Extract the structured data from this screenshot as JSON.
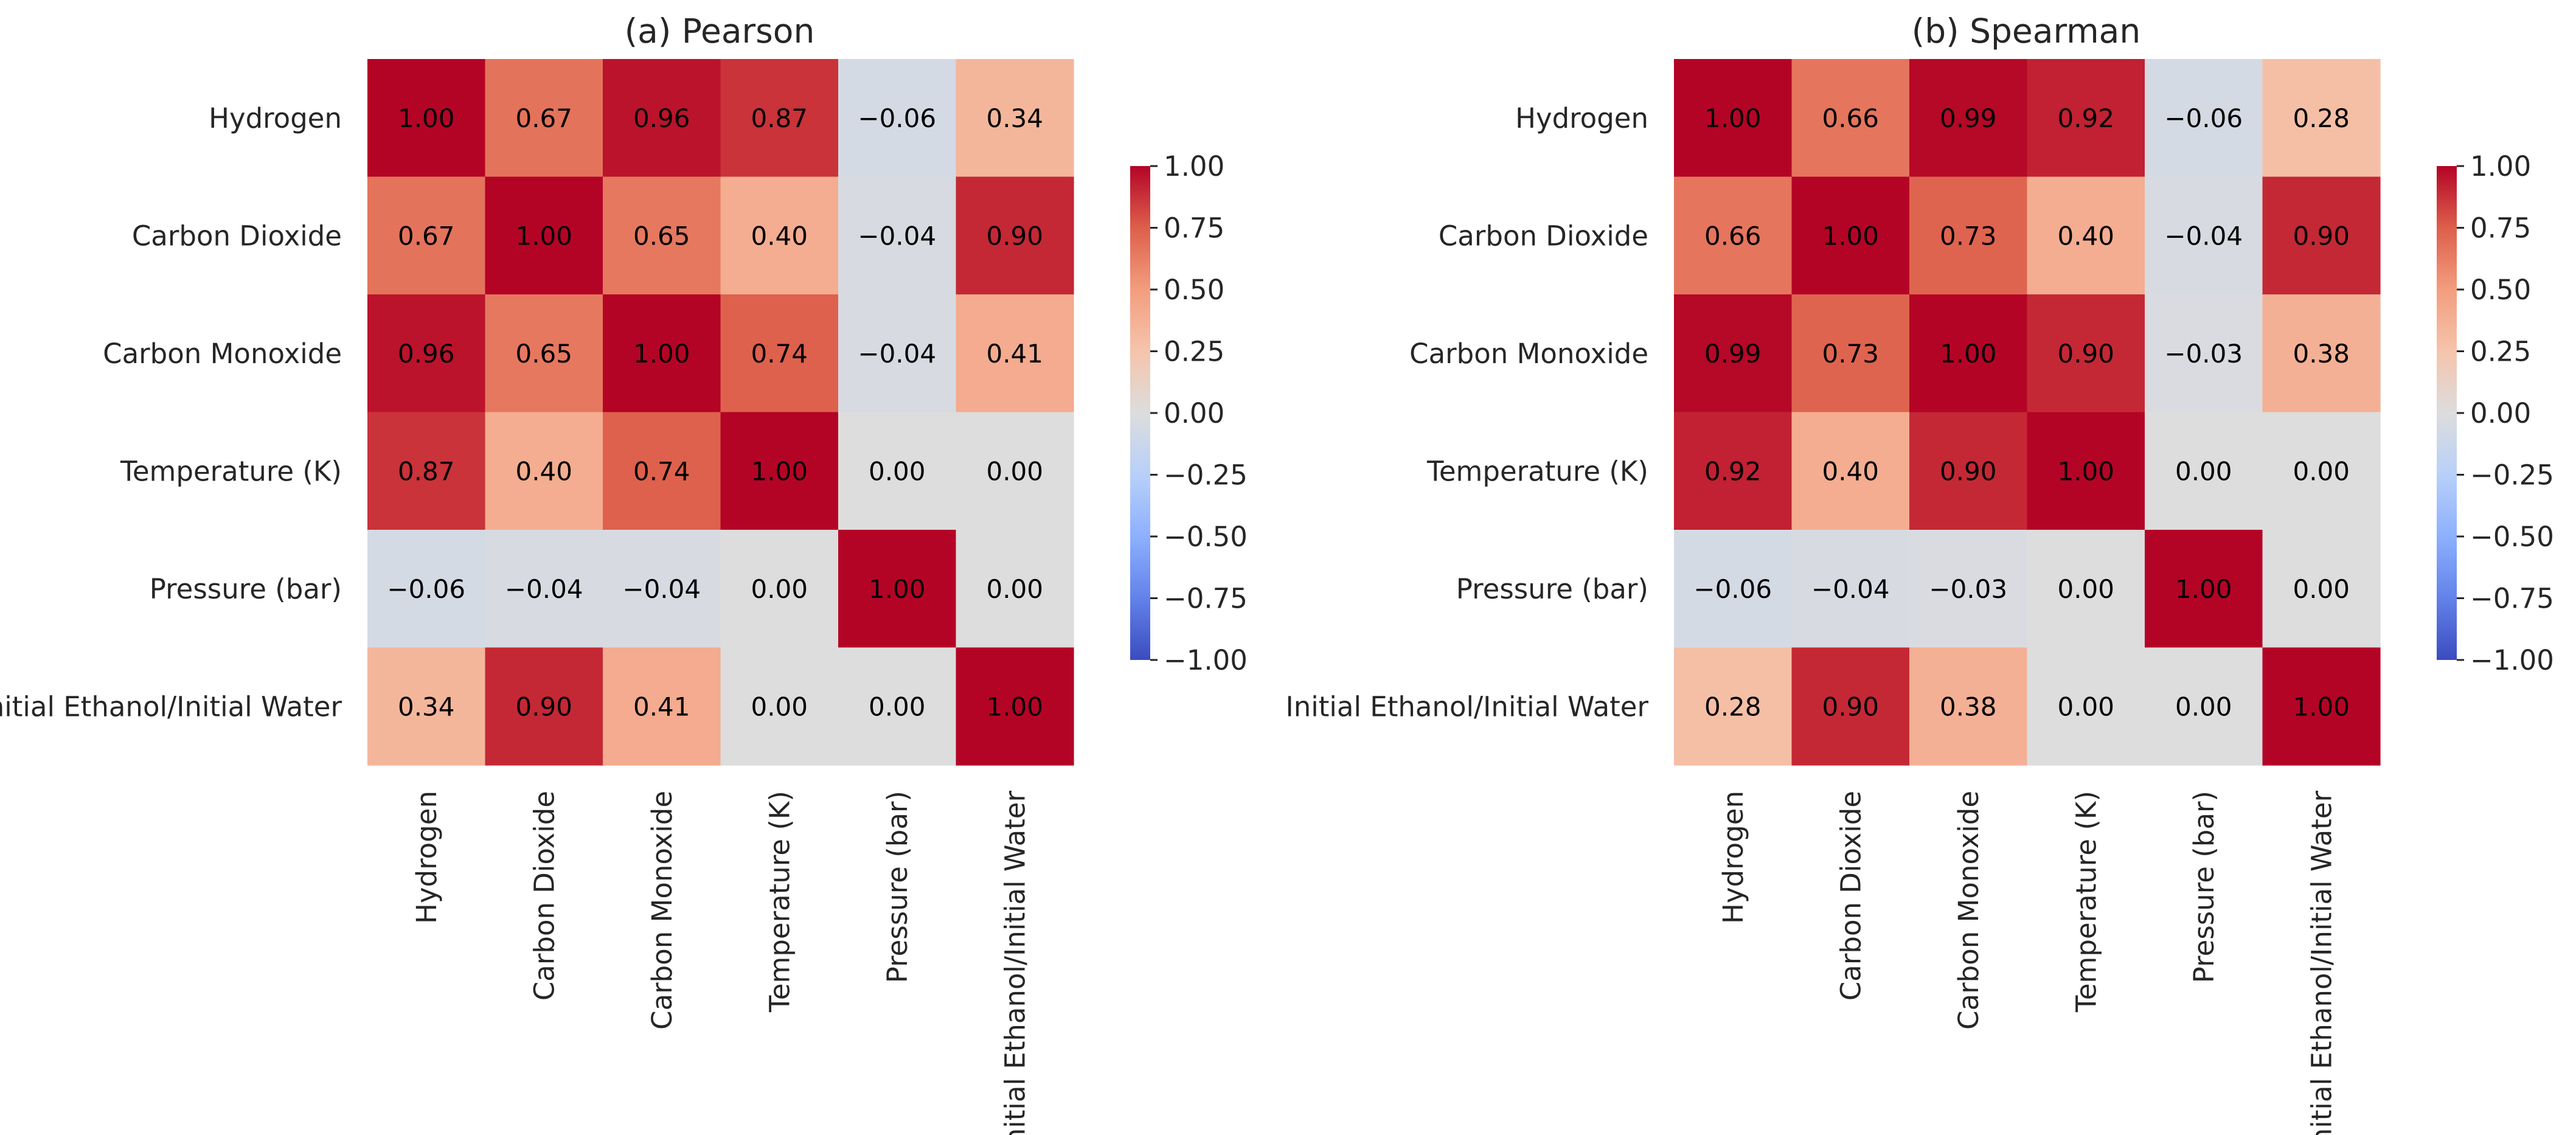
{
  "chart_data": [
    {
      "type": "heatmap",
      "title": "(a) Pearson",
      "rows": [
        "Hydrogen",
        "Carbon Dioxide",
        "Carbon Monoxide",
        "Temperature (K)",
        "Pressure (bar)",
        "Initial Ethanol/Initial Water"
      ],
      "columns": [
        "Hydrogen",
        "Carbon Dioxide",
        "Carbon Monoxide",
        "Temperature (K)",
        "Pressure (bar)",
        "Initial Ethanol/Initial Water"
      ],
      "values": [
        [
          1.0,
          0.67,
          0.96,
          0.87,
          -0.06,
          0.34
        ],
        [
          0.67,
          1.0,
          0.65,
          0.4,
          -0.04,
          0.9
        ],
        [
          0.96,
          0.65,
          1.0,
          0.74,
          -0.04,
          0.41
        ],
        [
          0.87,
          0.4,
          0.74,
          1.0,
          0.0,
          0.0
        ],
        [
          -0.06,
          -0.04,
          -0.04,
          0.0,
          1.0,
          0.0
        ],
        [
          0.34,
          0.9,
          0.41,
          0.0,
          0.0,
          1.0
        ]
      ],
      "colorbar": {
        "range": [
          -1.0,
          1.0
        ],
        "ticks": [
          "1.00",
          "0.75",
          "0.50",
          "0.25",
          "0.00",
          "−0.25",
          "−0.50",
          "−0.75",
          "−1.00"
        ]
      },
      "colormap": "coolwarm"
    },
    {
      "type": "heatmap",
      "title": "(b) Spearman",
      "rows": [
        "Hydrogen",
        "Carbon Dioxide",
        "Carbon Monoxide",
        "Temperature (K)",
        "Pressure (bar)",
        "Initial Ethanol/Initial Water"
      ],
      "columns": [
        "Hydrogen",
        "Carbon Dioxide",
        "Carbon Monoxide",
        "Temperature (K)",
        "Pressure (bar)",
        "Initial Ethanol/Initial Water"
      ],
      "values": [
        [
          1.0,
          0.66,
          0.99,
          0.92,
          -0.06,
          0.28
        ],
        [
          0.66,
          1.0,
          0.73,
          0.4,
          -0.04,
          0.9
        ],
        [
          0.99,
          0.73,
          1.0,
          0.9,
          -0.03,
          0.38
        ],
        [
          0.92,
          0.4,
          0.9,
          1.0,
          0.0,
          0.0
        ],
        [
          -0.06,
          -0.04,
          -0.03,
          0.0,
          1.0,
          0.0
        ],
        [
          0.28,
          0.9,
          0.38,
          0.0,
          0.0,
          1.0
        ]
      ],
      "colorbar": {
        "range": [
          -1.0,
          1.0
        ],
        "ticks": [
          "1.00",
          "0.75",
          "0.50",
          "0.25",
          "0.00",
          "−0.25",
          "−0.50",
          "−0.75",
          "−1.00"
        ]
      },
      "colormap": "coolwarm"
    }
  ]
}
